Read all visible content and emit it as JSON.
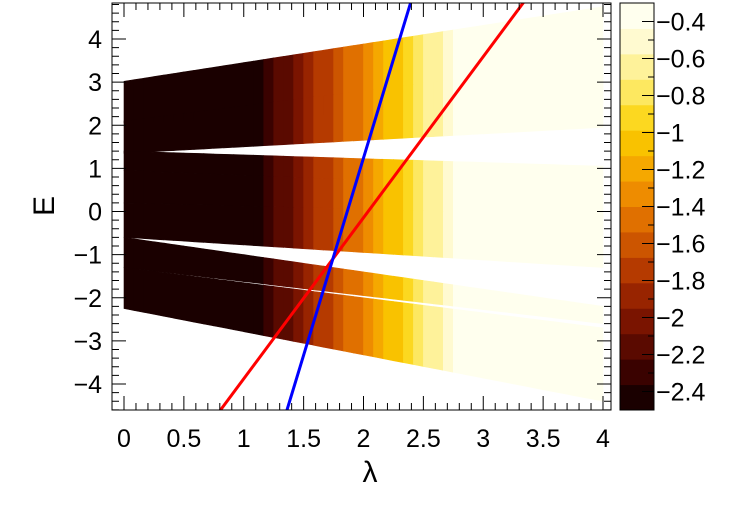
{
  "chart_data": {
    "type": "heatmap",
    "title": "",
    "xlabel": "λ",
    "ylabel": "E",
    "xlim": [
      -0.1,
      4.05
    ],
    "ylim": [
      -4.7,
      4.9
    ],
    "xticks": [
      "0",
      "0.5",
      "1",
      "1.5",
      "2",
      "2.5",
      "3",
      "3.5",
      "4"
    ],
    "xtick_values": [
      0,
      0.5,
      1,
      1.5,
      2,
      2.5,
      3,
      3.5,
      4
    ],
    "yticks": [
      "−4",
      "−3",
      "−2",
      "−1",
      "0",
      "1",
      "2",
      "3",
      "4"
    ],
    "ytick_values": [
      -4,
      -3,
      -2,
      -1,
      0,
      1,
      2,
      3,
      4
    ],
    "colorbar": {
      "range": [
        -2.5,
        -0.3
      ],
      "tick_values": [
        -2.4,
        -2.2,
        -2.0,
        -1.8,
        -1.6,
        -1.4,
        -1.2,
        -1.0,
        -0.8,
        -0.6,
        -0.4
      ],
      "tick_labels": [
        "−2.4",
        "−2.2",
        "−2",
        "−1.8",
        "−1.6",
        "−1.4",
        "−1.2",
        "−1",
        "−0.8",
        "−0.6",
        "−0.4"
      ],
      "colormap": [
        "#1a0000",
        "#3a0200",
        "#5a0a00",
        "#7a1400",
        "#982400",
        "#b53a00",
        "#cc5500",
        "#e07000",
        "#ee8c00",
        "#f5a800",
        "#f9c200",
        "#fcd820",
        "#fde860",
        "#fef29a",
        "#fffad0",
        "#ffffee"
      ]
    },
    "bands": [
      {
        "lam_start": 0,
        "e_low_start": 2.05,
        "e_high_start": 3.02,
        "e_low_end": 2.5,
        "e_high_end": 4.75
      },
      {
        "lam_start": 0,
        "e_low_start": 1.35,
        "e_high_start": 2.1,
        "e_low_end": 1.95,
        "e_high_end": 3.5
      },
      {
        "lam_start": 0,
        "e_low_start": 0.95,
        "e_high_start": 1.4,
        "e_low_end": 0.5,
        "e_high_end": 1.05
      },
      {
        "lam_start": 0,
        "e_low_start": 0.2,
        "e_high_start": 0.95,
        "e_low_end": -0.1,
        "e_high_end": 0.5
      },
      {
        "lam_start": 0,
        "e_low_start": -0.6,
        "e_high_start": 0.2,
        "e_low_end": -1.3,
        "e_high_end": -0.1
      },
      {
        "lam_start": 0,
        "e_low_start": -1.3,
        "e_high_start": -0.6,
        "e_low_end": -2.6,
        "e_high_end": -2.2
      },
      {
        "lam_start": 0,
        "e_low_start": -2.25,
        "e_high_start": -1.3,
        "e_low_end": -4.4,
        "e_high_end": -2.7
      }
    ],
    "series": [
      {
        "name": "",
        "color": "#ff0000",
        "x": [
          0.78,
          3.35
        ],
        "y": [
          -4.7,
          4.9
        ]
      },
      {
        "name": "",
        "color": "#0000ff",
        "x": [
          1.35,
          2.4
        ],
        "y": [
          -4.7,
          4.9
        ]
      }
    ]
  }
}
